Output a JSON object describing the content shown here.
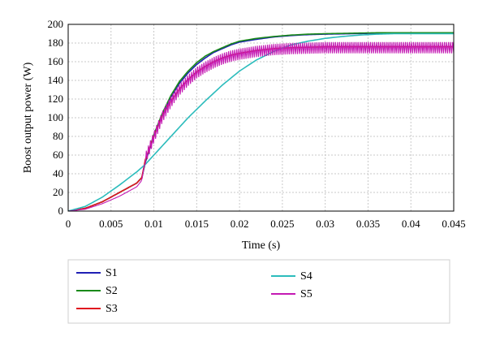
{
  "chart_data": {
    "type": "line",
    "title": "",
    "xlabel": "Time (s)",
    "ylabel": "Boost output power (W)",
    "xlim": [
      0,
      0.045
    ],
    "ylim": [
      0,
      200
    ],
    "xticks": [
      "0",
      "0.005",
      "0.01",
      "0.015",
      "0.02",
      "0.025",
      "0.03",
      "0.035",
      "0.04",
      "0.045"
    ],
    "xtick_values": [
      0,
      0.005,
      0.01,
      0.015,
      0.02,
      0.025,
      0.03,
      0.035,
      0.04,
      0.045
    ],
    "yticks": [
      "0",
      "20",
      "40",
      "60",
      "80",
      "100",
      "120",
      "140",
      "160",
      "180",
      "200"
    ],
    "ytick_values": [
      0,
      20,
      40,
      60,
      80,
      100,
      120,
      140,
      160,
      180,
      200
    ],
    "grid": true,
    "legend_position": "bottom",
    "series": [
      {
        "name": "S1",
        "color": "#1f1fb4",
        "x": [
          0,
          0.002,
          0.004,
          0.006,
          0.008,
          0.0086,
          0.009,
          0.01,
          0.011,
          0.012,
          0.013,
          0.014,
          0.015,
          0.016,
          0.017,
          0.018,
          0.019,
          0.02,
          0.022,
          0.024,
          0.026,
          0.028,
          0.03,
          0.033,
          0.036,
          0.04,
          0.045
        ],
        "y": [
          0,
          3,
          10,
          20,
          30,
          36,
          52,
          80,
          103,
          122,
          137,
          148,
          157,
          164,
          170,
          174,
          178,
          181,
          184,
          186.5,
          188,
          189,
          189.5,
          190,
          190.5,
          190.5,
          190.5
        ]
      },
      {
        "name": "S2",
        "color": "#1a8a1a",
        "x": [
          0,
          0.002,
          0.004,
          0.006,
          0.008,
          0.0086,
          0.009,
          0.01,
          0.011,
          0.012,
          0.013,
          0.014,
          0.015,
          0.016,
          0.017,
          0.018,
          0.019,
          0.02,
          0.022,
          0.024,
          0.026,
          0.028,
          0.03,
          0.033,
          0.036,
          0.04,
          0.045
        ],
        "y": [
          0,
          3,
          10,
          20,
          30,
          36,
          53,
          82,
          105,
          124,
          139,
          150,
          159,
          166,
          171,
          175,
          179,
          182,
          185,
          187,
          188.5,
          189.5,
          190,
          190.5,
          191,
          191,
          191
        ]
      },
      {
        "name": "S3",
        "color": "#e0141e",
        "x": [
          0,
          0.002,
          0.004,
          0.006,
          0.008,
          0.0086,
          0.009,
          0.01,
          0.011,
          0.012,
          0.013,
          0.014,
          0.015,
          0.016,
          0.017,
          0.018,
          0.019,
          0.02,
          0.022,
          0.024,
          0.026,
          0.028,
          0.03,
          0.033,
          0.036,
          0.04,
          0.045
        ],
        "y": [
          0,
          3,
          10,
          20,
          30,
          36,
          55,
          80,
          102,
          118,
          131,
          141,
          149,
          155,
          160,
          164,
          167,
          169,
          172,
          174,
          175,
          175.5,
          176,
          176,
          176,
          176,
          176
        ]
      },
      {
        "name": "S4",
        "color": "#2cbcbc",
        "x": [
          0,
          0.002,
          0.004,
          0.006,
          0.008,
          0.009,
          0.01,
          0.012,
          0.014,
          0.016,
          0.018,
          0.02,
          0.022,
          0.024,
          0.026,
          0.028,
          0.03,
          0.032,
          0.034,
          0.036,
          0.038,
          0.04,
          0.045
        ],
        "y": [
          0,
          5,
          15,
          28,
          42,
          50,
          60,
          80,
          100,
          118,
          135,
          150,
          162,
          171,
          178,
          182,
          185,
          187,
          188.5,
          189.5,
          190,
          190,
          190
        ]
      },
      {
        "name": "S5",
        "color": "#c41ab4",
        "x": [
          0,
          0.002,
          0.004,
          0.006,
          0.008,
          0.0086,
          0.009,
          0.01,
          0.011,
          0.012,
          0.013,
          0.014,
          0.015,
          0.016,
          0.017,
          0.018,
          0.019,
          0.02,
          0.022,
          0.024,
          0.026,
          0.028,
          0.03,
          0.033,
          0.036,
          0.04,
          0.045
        ],
        "y": [
          0,
          2,
          8,
          16,
          26,
          33,
          56,
          79,
          101,
          117,
          130,
          140,
          148,
          154,
          159,
          163,
          166,
          168,
          171,
          173,
          174,
          174.5,
          175,
          175,
          175,
          175,
          175
        ],
        "ripple": 6
      }
    ]
  }
}
